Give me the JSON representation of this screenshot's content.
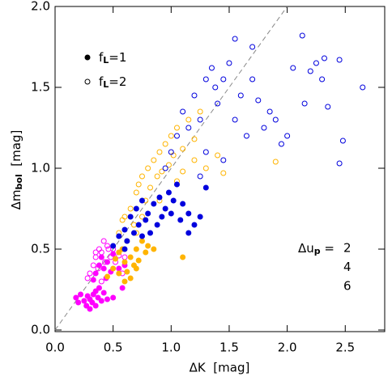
{
  "chart_data": {
    "type": "scatter",
    "x_label": "ΔK  [mag]",
    "y_label": {
      "text": "Δm",
      "sub": "bol",
      "tail": "  [mag]"
    },
    "xlim": [
      0,
      2.84
    ],
    "ylim": [
      -0.01,
      2.0
    ],
    "xticks": [
      {
        "value": 0,
        "label": "0.0"
      },
      0.5,
      {
        "value": 1,
        "label": "1.0"
      },
      1.5,
      {
        "value": 2,
        "label": "2.0"
      },
      2.5
    ],
    "yticks": [
      {
        "value": 0,
        "label": "0.0"
      },
      0.5,
      {
        "value": 1,
        "label": "1.0"
      },
      1.5,
      {
        "value": 2,
        "label": "2.0"
      }
    ],
    "identity_line": true,
    "marker_legend": [
      {
        "style": "filled",
        "text": "f",
        "sub": "L",
        "tail": "=1"
      },
      {
        "style": "open",
        "text": "f",
        "sub": "L",
        "tail": "=2"
      }
    ],
    "color_legend_title": {
      "text": "Δu",
      "sub": "p",
      "tail": " ="
    },
    "groups": [
      {
        "name": "2",
        "color": "#ff00ff",
        "series": [
          {
            "style": "filled",
            "x": [
              0.18,
              0.2,
              0.22,
              0.25,
              0.27,
              0.28,
              0.3,
              0.3,
              0.32,
              0.33,
              0.35,
              0.35,
              0.37,
              0.38,
              0.4,
              0.42,
              0.45,
              0.5,
              0.58,
              0.35,
              0.38,
              0.4,
              0.42,
              0.45,
              0.48,
              0.5,
              0.33,
              0.44,
              0.55,
              0.6
            ],
            "values": [
              0.2,
              0.17,
              0.22,
              0.18,
              0.15,
              0.21,
              0.19,
              0.13,
              0.17,
              0.22,
              0.15,
              0.24,
              0.2,
              0.26,
              0.18,
              0.23,
              0.19,
              0.2,
              0.26,
              0.35,
              0.4,
              0.45,
              0.38,
              0.42,
              0.36,
              0.47,
              0.31,
              0.32,
              0.38,
              0.4
            ]
          },
          {
            "style": "open",
            "x": [
              0.3,
              0.33,
              0.35,
              0.38,
              0.4,
              0.42,
              0.45,
              0.48,
              0.5,
              0.37,
              0.43,
              0.52,
              0.55,
              0.58,
              0.6,
              0.4,
              0.28,
              0.46,
              0.35
            ],
            "values": [
              0.35,
              0.4,
              0.45,
              0.5,
              0.48,
              0.55,
              0.52,
              0.45,
              0.5,
              0.38,
              0.42,
              0.42,
              0.46,
              0.35,
              0.45,
              0.3,
              0.32,
              0.5,
              0.48
            ]
          }
        ]
      },
      {
        "name": "4",
        "color": "#ffb400",
        "series": [
          {
            "style": "filled",
            "x": [
              0.45,
              0.5,
              0.55,
              0.6,
              0.62,
              0.65,
              0.68,
              0.7,
              0.72,
              0.75,
              0.78,
              0.8,
              0.55,
              0.6,
              0.65,
              0.52,
              0.58,
              0.85,
              1.1,
              0.7
            ],
            "values": [
              0.33,
              0.38,
              0.35,
              0.42,
              0.36,
              0.45,
              0.4,
              0.5,
              0.43,
              0.55,
              0.48,
              0.52,
              0.48,
              0.3,
              0.32,
              0.44,
              0.5,
              0.5,
              0.45,
              0.38
            ]
          },
          {
            "style": "open",
            "x": [
              0.55,
              0.6,
              0.65,
              0.7,
              0.72,
              0.75,
              0.78,
              0.8,
              0.82,
              0.85,
              0.88,
              0.9,
              0.92,
              0.95,
              0.98,
              1.0,
              1.02,
              1.05,
              1.1,
              1.15,
              1.2,
              0.62,
              0.68,
              0.75,
              0.9,
              1.05,
              1.1,
              1.2,
              1.3,
              1.4,
              1.45,
              1.9,
              1.25,
              0.7,
              0.58
            ],
            "values": [
              0.6,
              0.7,
              0.75,
              0.85,
              0.9,
              0.95,
              0.8,
              1.0,
              0.88,
              1.05,
              0.95,
              1.1,
              0.98,
              1.15,
              1.02,
              1.2,
              1.08,
              1.25,
              1.12,
              1.3,
              1.18,
              0.55,
              0.65,
              0.7,
              0.8,
              0.92,
              0.98,
              1.05,
              1.0,
              1.08,
              0.97,
              1.04,
              1.35,
              0.6,
              0.68
            ]
          }
        ]
      },
      {
        "name": "6",
        "color": "#0000dd",
        "series": [
          {
            "style": "filled",
            "x": [
              0.5,
              0.55,
              0.6,
              0.62,
              0.65,
              0.68,
              0.7,
              0.72,
              0.75,
              0.78,
              0.8,
              0.82,
              0.85,
              0.88,
              0.9,
              0.92,
              0.95,
              0.98,
              1.0,
              1.02,
              1.05,
              1.08,
              1.1,
              1.15,
              1.2,
              1.25,
              1.3,
              1.15,
              0.75,
              0.6
            ],
            "values": [
              0.52,
              0.58,
              0.62,
              0.55,
              0.7,
              0.6,
              0.75,
              0.65,
              0.8,
              0.68,
              0.72,
              0.6,
              0.78,
              0.65,
              0.82,
              0.7,
              0.75,
              0.85,
              0.72,
              0.8,
              0.9,
              0.68,
              0.78,
              0.72,
              0.65,
              0.7,
              0.88,
              0.6,
              0.58,
              0.5
            ]
          },
          {
            "style": "open",
            "x": [
              0.95,
              1.0,
              1.05,
              1.1,
              1.15,
              1.2,
              1.25,
              1.3,
              1.35,
              1.38,
              1.4,
              1.45,
              1.5,
              1.55,
              1.6,
              1.65,
              1.7,
              1.75,
              1.8,
              1.85,
              1.9,
              1.95,
              2.0,
              1.55,
              1.7,
              2.13,
              2.2,
              2.25,
              2.3,
              2.32,
              2.45,
              2.35,
              2.15,
              2.45,
              2.48,
              2.65,
              1.3,
              1.25,
              1.45,
              2.05
            ],
            "values": [
              1.0,
              1.1,
              1.2,
              1.35,
              1.25,
              1.45,
              1.3,
              1.55,
              1.62,
              1.5,
              1.4,
              1.55,
              1.65,
              1.3,
              1.45,
              1.2,
              1.55,
              1.42,
              1.25,
              1.35,
              1.3,
              1.15,
              1.2,
              1.8,
              1.75,
              1.82,
              1.6,
              1.65,
              1.55,
              1.68,
              1.67,
              1.38,
              1.4,
              1.03,
              1.17,
              1.5,
              1.1,
              0.95,
              1.05,
              1.62
            ]
          }
        ]
      }
    ]
  }
}
